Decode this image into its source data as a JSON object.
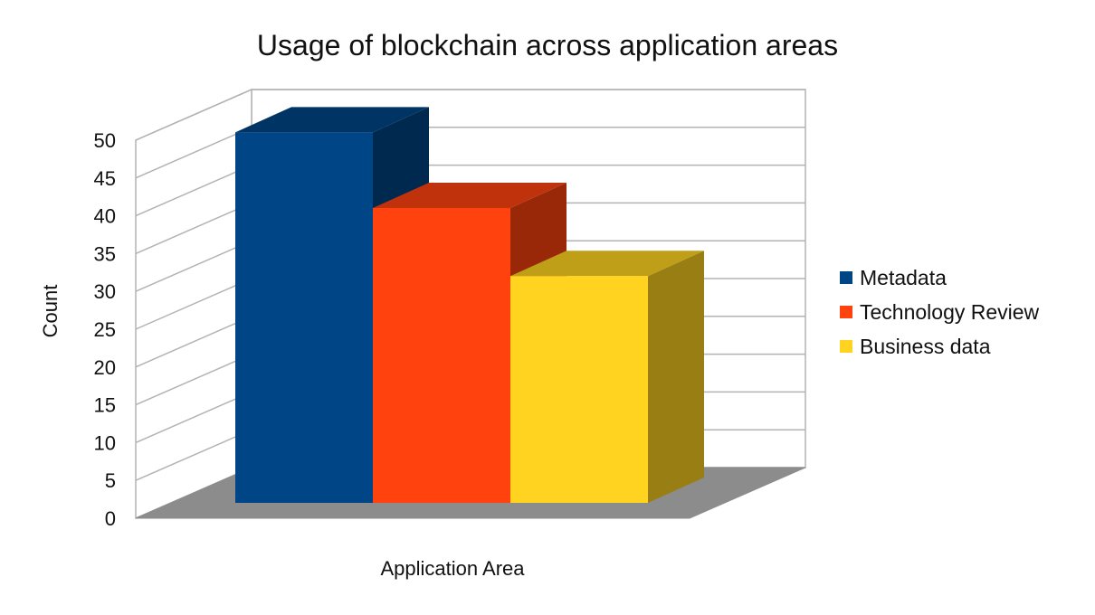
{
  "chart_data": {
    "type": "bar",
    "title": "Usage of blockchain across application areas",
    "xlabel": "Application Area",
    "ylabel": "Count",
    "ylim": [
      0,
      50
    ],
    "yticks": [
      "0",
      "5",
      "10",
      "15",
      "20",
      "25",
      "30",
      "35",
      "40",
      "45",
      "50"
    ],
    "grid": true,
    "legend_position": "right",
    "style": "3d",
    "series": [
      {
        "name": "Metadata",
        "values": [
          49
        ],
        "color": "#004586"
      },
      {
        "name": "Technology Review",
        "values": [
          39
        ],
        "color": "#ff420e"
      },
      {
        "name": "Business data",
        "values": [
          30
        ],
        "color": "#ffd320"
      }
    ]
  }
}
